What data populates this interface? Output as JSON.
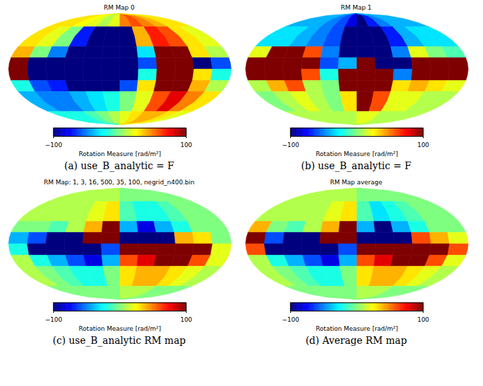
{
  "chart_data": [
    {
      "type": "heatmap",
      "title": "RM Map 0",
      "caption": "(a) use_B_analytic = F",
      "lon_edges": [
        180,
        150,
        120,
        90,
        60,
        30,
        0,
        -30,
        -60,
        -90,
        -120,
        -150,
        -180
      ],
      "lat_edges": [
        90,
        60,
        30,
        15,
        0,
        -15,
        -30,
        -60,
        -90
      ],
      "cells": [
        [
          30,
          30,
          25,
          20,
          10,
          20,
          50,
          60,
          50,
          40,
          30,
          30
        ],
        [
          30,
          20,
          0,
          -70,
          -100,
          -100,
          -100,
          40,
          70,
          60,
          30,
          20
        ],
        [
          40,
          0,
          -50,
          -100,
          -100,
          -100,
          -100,
          -30,
          100,
          100,
          30,
          10
        ],
        [
          100,
          -100,
          -100,
          -100,
          -100,
          -100,
          -100,
          -60,
          100,
          100,
          -100,
          -60
        ],
        [
          100,
          -100,
          -100,
          -100,
          -100,
          -100,
          -100,
          -20,
          100,
          100,
          30,
          -20
        ],
        [
          -20,
          -60,
          -70,
          -100,
          -100,
          -100,
          -60,
          30,
          100,
          100,
          40,
          10
        ],
        [
          -40,
          -50,
          -50,
          -40,
          -30,
          -20,
          0,
          20,
          60,
          80,
          50,
          30
        ],
        [
          -20,
          -20,
          -20,
          -10,
          0,
          10,
          20,
          30,
          40,
          40,
          30,
          20
        ]
      ],
      "colorbar": {
        "label": "Rotation Measure [rad/m²]",
        "range": [
          -100,
          100
        ],
        "ticks": [
          -100,
          100
        ]
      }
    },
    {
      "type": "heatmap",
      "title": "RM Map 1",
      "caption": "(b) use_B_analytic = F",
      "lon_edges": [
        180,
        150,
        120,
        90,
        60,
        30,
        0,
        -30,
        -60,
        -90,
        -120,
        -150,
        -180
      ],
      "lat_edges": [
        90,
        60,
        30,
        15,
        0,
        -15,
        -30,
        -60,
        -90
      ],
      "cells": [
        [
          -40,
          -40,
          -40,
          -50,
          -60,
          -80,
          -100,
          -70,
          -50,
          -40,
          -40,
          -40
        ],
        [
          -30,
          -30,
          -40,
          -50,
          -60,
          -100,
          -100,
          -100,
          -70,
          -40,
          -30,
          -30
        ],
        [
          20,
          100,
          100,
          60,
          -50,
          -100,
          -100,
          -100,
          -50,
          20,
          0,
          -10
        ],
        [
          100,
          100,
          100,
          100,
          -60,
          -40,
          100,
          -100,
          -100,
          100,
          100,
          100
        ],
        [
          100,
          100,
          100,
          60,
          -20,
          100,
          100,
          100,
          -50,
          100,
          100,
          100
        ],
        [
          10,
          40,
          60,
          10,
          0,
          100,
          100,
          100,
          30,
          40,
          30,
          20
        ],
        [
          0,
          10,
          20,
          10,
          0,
          30,
          100,
          60,
          20,
          20,
          10,
          10
        ],
        [
          10,
          10,
          10,
          10,
          10,
          10,
          20,
          20,
          10,
          10,
          10,
          10
        ]
      ],
      "colorbar": {
        "label": "Rotation Measure [rad/m²]",
        "range": [
          -100,
          100
        ],
        "ticks": [
          -100,
          100
        ]
      }
    },
    {
      "type": "heatmap",
      "title": "RM Map: 1, 3, 16, 500, 35, 100, negrid_n400.bin",
      "caption": "(c) use_B_analytic RM map",
      "lon_edges": [
        180,
        150,
        120,
        90,
        60,
        30,
        0,
        -30,
        -60,
        -90,
        -120,
        -150,
        -180
      ],
      "lat_edges": [
        90,
        60,
        30,
        15,
        0,
        -15,
        -30,
        -60,
        -90
      ],
      "cells": [
        [
          10,
          10,
          10,
          10,
          10,
          10,
          0,
          0,
          0,
          0,
          0,
          0
        ],
        [
          10,
          10,
          10,
          10,
          20,
          30,
          -10,
          -20,
          -20,
          -10,
          0,
          0
        ],
        [
          0,
          0,
          -10,
          10,
          40,
          100,
          -40,
          -80,
          -40,
          -20,
          0,
          0
        ],
        [
          -40,
          -60,
          -100,
          -100,
          100,
          100,
          -100,
          -100,
          -100,
          40,
          30,
          0
        ],
        [
          -20,
          -100,
          -100,
          -100,
          -100,
          -60,
          100,
          100,
          100,
          100,
          100,
          20
        ],
        [
          10,
          -20,
          -40,
          -60,
          -80,
          -40,
          60,
          80,
          100,
          100,
          60,
          20
        ],
        [
          10,
          0,
          -10,
          -20,
          -20,
          0,
          30,
          40,
          40,
          30,
          20,
          10
        ],
        [
          0,
          0,
          0,
          0,
          0,
          0,
          10,
          10,
          10,
          0,
          0,
          0
        ]
      ],
      "colorbar": {
        "label": "Rotation Measure [rad/m²]",
        "range": [
          -100,
          100
        ],
        "ticks": [
          -100,
          100
        ]
      }
    },
    {
      "type": "heatmap",
      "title": "RM Map average",
      "caption": "(d) Average RM map",
      "lon_edges": [
        180,
        150,
        120,
        90,
        60,
        30,
        0,
        -30,
        -60,
        -90,
        -120,
        -150,
        -180
      ],
      "lat_edges": [
        90,
        60,
        30,
        15,
        0,
        -15,
        -30,
        -60,
        -90
      ],
      "cells": [
        [
          10,
          10,
          10,
          10,
          10,
          10,
          0,
          0,
          0,
          0,
          0,
          0
        ],
        [
          10,
          10,
          10,
          10,
          20,
          30,
          -10,
          -30,
          -20,
          -10,
          0,
          0
        ],
        [
          40,
          0,
          -10,
          10,
          40,
          100,
          -40,
          -100,
          -40,
          -20,
          0,
          0
        ],
        [
          100,
          -60,
          -100,
          -100,
          100,
          100,
          -100,
          -100,
          -100,
          60,
          40,
          20
        ],
        [
          60,
          -100,
          -100,
          -100,
          -100,
          -60,
          100,
          100,
          100,
          100,
          100,
          60
        ],
        [
          10,
          -20,
          -40,
          -60,
          -80,
          -40,
          60,
          80,
          100,
          100,
          60,
          20
        ],
        [
          10,
          0,
          -10,
          -20,
          -20,
          0,
          30,
          40,
          40,
          30,
          20,
          10
        ],
        [
          0,
          0,
          0,
          0,
          0,
          0,
          10,
          10,
          10,
          0,
          0,
          0
        ]
      ],
      "colorbar": {
        "label": "Rotation Measure [rad/m²]",
        "range": [
          -100,
          100
        ],
        "ticks": [
          -100,
          100
        ]
      }
    }
  ]
}
